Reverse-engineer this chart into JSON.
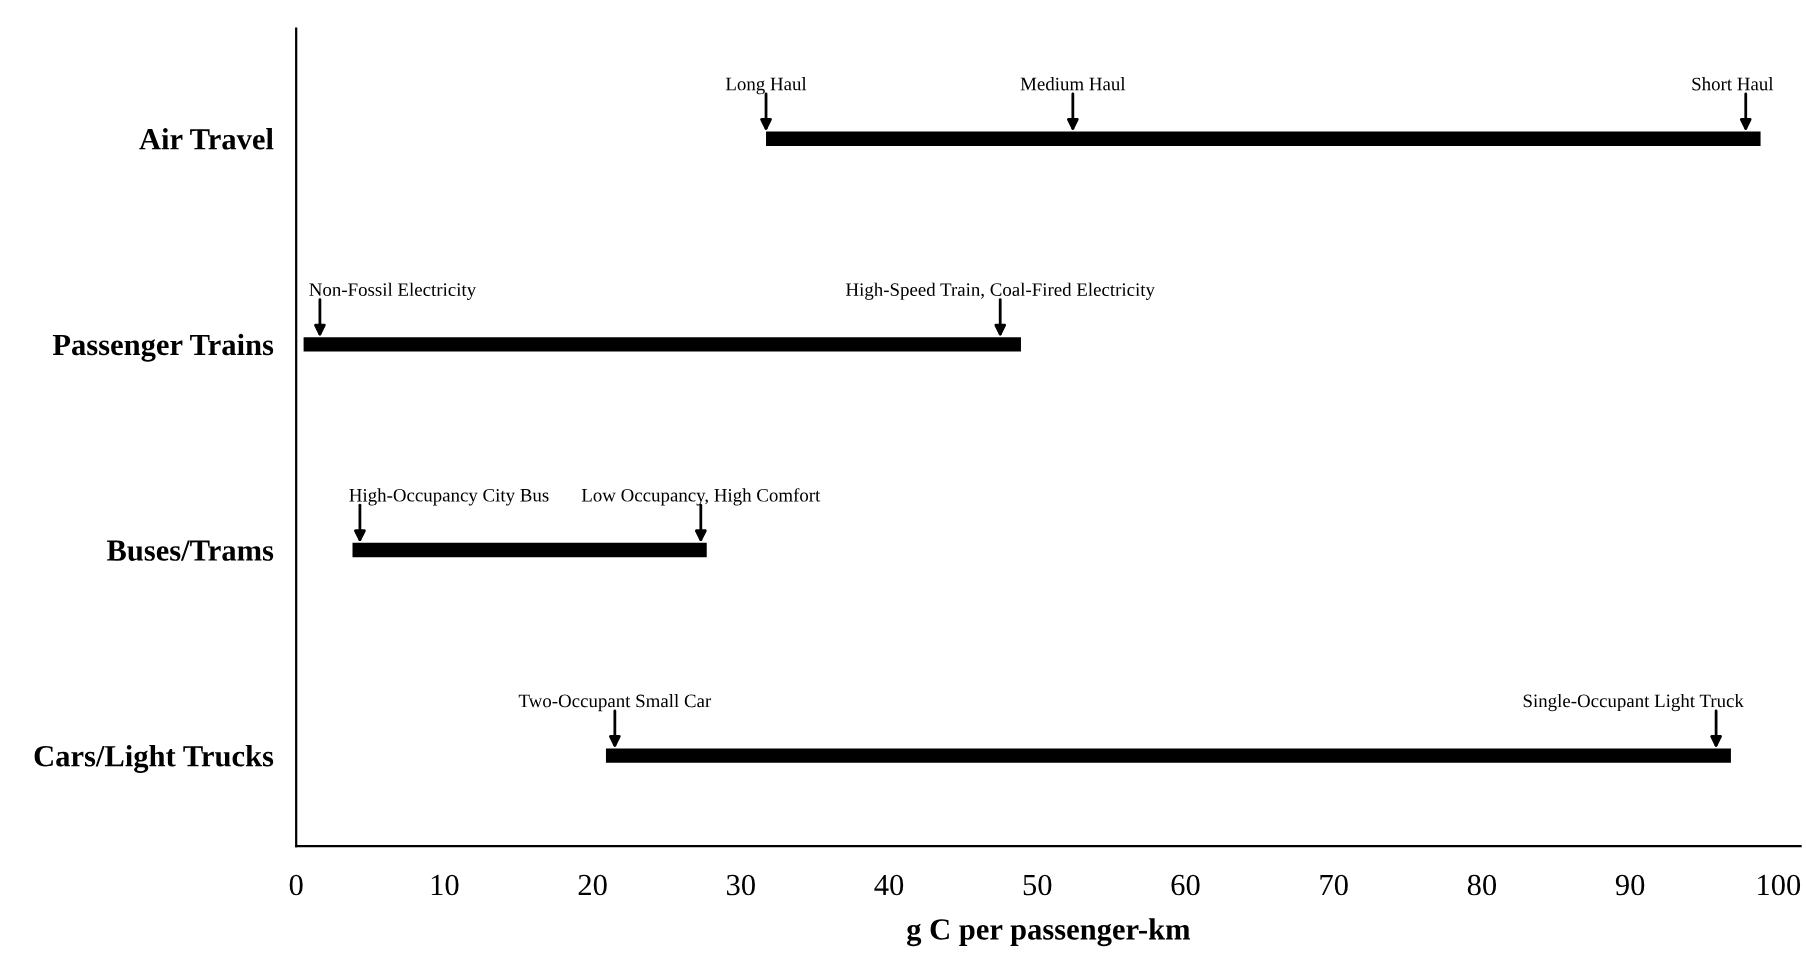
{
  "chart_data": {
    "type": "bar",
    "orientation": "horizontal",
    "xlabel": "g C per passenger-km",
    "categories": [
      "Air Travel",
      "Passenger Trains",
      "Buses/Trams",
      "Cars/Light Trucks"
    ],
    "base": [
      31.7,
      0.5,
      3.8,
      20.9
    ],
    "values": [
      67.1,
      48.4,
      23.9,
      75.9
    ],
    "color": "#000000",
    "xlim": [
      0,
      101.5
    ],
    "xticks": [
      0,
      10,
      20,
      30,
      40,
      50,
      60,
      70,
      80,
      90,
      100
    ],
    "grid": false,
    "annotations": [
      {
        "text": "Long Haul",
        "x": 31.7,
        "y": "Air Travel"
      },
      {
        "text": "Medium Haul",
        "x": 52.4,
        "y": "Air Travel"
      },
      {
        "text": "Short Haul",
        "x": 97.8,
        "y": "Air Travel"
      },
      {
        "text": "Non-Fossil Electricity",
        "x": 1.6,
        "y": "Passenger Trains"
      },
      {
        "text": "High-Speed Train, Coal-Fired Electricity",
        "x": 47.5,
        "y": "Passenger Trains"
      },
      {
        "text": "High-Occupancy City Bus",
        "x": 4.3,
        "y": "Buses/Trams"
      },
      {
        "text": "Low Occupancy, High Comfort",
        "x": 27.3,
        "y": "Buses/Trams"
      },
      {
        "text": "Two-Occupant Small Car",
        "x": 21.5,
        "y": "Cars/Light Trucks"
      },
      {
        "text": "Single-Occupant Light Truck",
        "x": 95.8,
        "y": "Cars/Light Trucks"
      }
    ]
  }
}
